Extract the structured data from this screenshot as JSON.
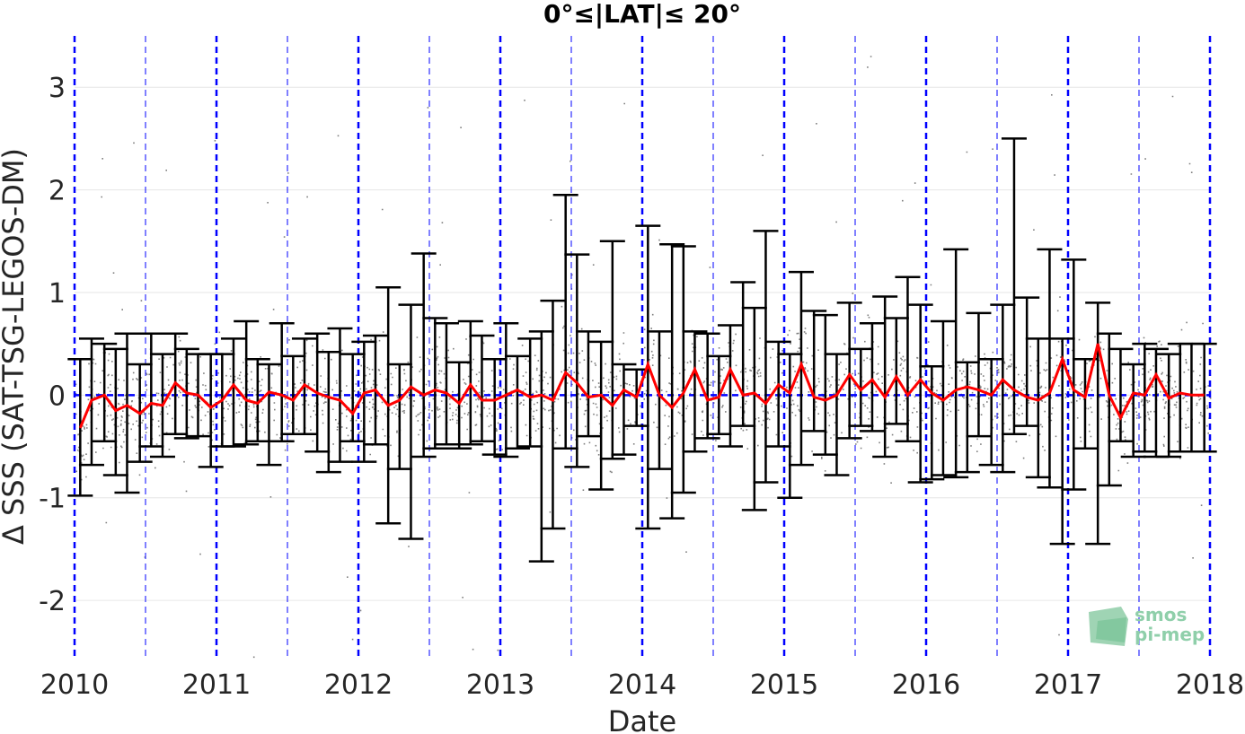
{
  "chart_data": {
    "type": "scatter",
    "title": "0°≤|LAT|≤ 20°",
    "xlabel": "Date",
    "ylabel": "Δ SSS (SAT-TSG-LEGOS-DM)",
    "xlim": [
      2010,
      2018
    ],
    "ylim": [
      -2.55,
      3.5
    ],
    "xticks": [
      "2010",
      "2011",
      "2012",
      "2013",
      "2014",
      "2015",
      "2016",
      "2017",
      "2018"
    ],
    "yticks": [
      "-2",
      "-1",
      "0",
      "1",
      "2",
      "3"
    ],
    "ytick_values": [
      -2,
      -1,
      0,
      1,
      2,
      3
    ],
    "grid": true,
    "colors": {
      "scatter": "#7f7f7f",
      "errorbar": "#000000",
      "mean_line": "#ff0000",
      "reference_lines": "#0000ff"
    },
    "zero_reference": 0,
    "year_boundaries": [
      2010,
      2011,
      2012,
      2013,
      2014,
      2015,
      2016,
      2017,
      2018
    ],
    "mid_year_lines": [
      2010.5,
      2011.5,
      2012.5,
      2013.5,
      2014.5,
      2015.5,
      2016.5,
      2017.5
    ],
    "series": [
      {
        "type": "line",
        "x": [
          2010.04,
          2010.12,
          2010.21,
          2010.29,
          2010.37,
          2010.46,
          2010.54,
          2010.62,
          2010.71,
          2010.79,
          2010.87,
          2010.96,
          2011.04,
          2011.12,
          2011.21,
          2011.29,
          2011.37,
          2011.46,
          2011.54,
          2011.62,
          2011.71,
          2011.79,
          2011.87,
          2011.96,
          2012.04,
          2012.12,
          2012.21,
          2012.29,
          2012.37,
          2012.46,
          2012.54,
          2012.62,
          2012.71,
          2012.79,
          2012.87,
          2012.96,
          2013.04,
          2013.12,
          2013.21,
          2013.29,
          2013.37,
          2013.46,
          2013.54,
          2013.62,
          2013.71,
          2013.79,
          2013.87,
          2013.96,
          2014.04,
          2014.12,
          2014.21,
          2014.29,
          2014.37,
          2014.46,
          2014.54,
          2014.62,
          2014.71,
          2014.79,
          2014.87,
          2014.96,
          2015.04,
          2015.12,
          2015.21,
          2015.29,
          2015.37,
          2015.46,
          2015.54,
          2015.62,
          2015.71,
          2015.79,
          2015.87,
          2015.96,
          2016.04,
          2016.12,
          2016.21,
          2016.29,
          2016.37,
          2016.46,
          2016.54,
          2016.62,
          2016.71,
          2016.79,
          2016.87,
          2016.96,
          2017.04,
          2017.12,
          2017.21,
          2017.29,
          2017.37,
          2017.46,
          2017.54,
          2017.62,
          2017.71,
          2017.79,
          2017.87,
          2017.96
        ],
        "y": [
          -0.32,
          -0.05,
          0.0,
          -0.15,
          -0.1,
          -0.18,
          -0.08,
          -0.1,
          0.12,
          0.02,
          0.0,
          -0.12,
          -0.05,
          0.1,
          -0.05,
          -0.08,
          0.03,
          0.0,
          -0.05,
          0.1,
          0.02,
          -0.02,
          -0.05,
          -0.18,
          0.02,
          0.05,
          -0.1,
          -0.05,
          0.08,
          0.0,
          0.05,
          0.02,
          -0.08,
          0.1,
          -0.05,
          -0.05,
          0.0,
          0.05,
          -0.02,
          0.0,
          -0.05,
          0.22,
          0.12,
          -0.02,
          0.0,
          -0.1,
          0.05,
          -0.02,
          0.3,
          0.0,
          -0.12,
          0.02,
          0.25,
          -0.05,
          -0.02,
          0.25,
          0.0,
          0.02,
          -0.08,
          0.1,
          0.02,
          0.3,
          -0.02,
          -0.05,
          0.0,
          0.2,
          0.05,
          0.15,
          -0.02,
          0.18,
          0.0,
          0.15,
          0.02,
          -0.05,
          0.05,
          0.08,
          0.05,
          0.0,
          0.15,
          0.05,
          -0.02,
          -0.05,
          0.02,
          0.35,
          0.05,
          -0.02,
          0.5,
          0.0,
          -0.22,
          0.02,
          0.0,
          0.2,
          -0.03,
          0.02,
          0.0,
          0.0
        ]
      },
      {
        "type": "errorbar",
        "x": [
          2010.04,
          2010.12,
          2010.21,
          2010.29,
          2010.37,
          2010.46,
          2010.54,
          2010.62,
          2010.71,
          2010.79,
          2010.87,
          2010.96,
          2011.04,
          2011.12,
          2011.21,
          2011.29,
          2011.37,
          2011.46,
          2011.54,
          2011.62,
          2011.71,
          2011.79,
          2011.87,
          2011.96,
          2012.04,
          2012.12,
          2012.21,
          2012.29,
          2012.37,
          2012.46,
          2012.54,
          2012.62,
          2012.71,
          2012.79,
          2012.87,
          2012.96,
          2013.04,
          2013.12,
          2013.21,
          2013.29,
          2013.37,
          2013.46,
          2013.54,
          2013.62,
          2013.71,
          2013.79,
          2013.87,
          2013.96,
          2014.04,
          2014.12,
          2014.21,
          2014.29,
          2014.37,
          2014.46,
          2014.54,
          2014.62,
          2014.71,
          2014.79,
          2014.87,
          2014.96,
          2015.04,
          2015.12,
          2015.21,
          2015.29,
          2015.37,
          2015.46,
          2015.54,
          2015.62,
          2015.71,
          2015.79,
          2015.87,
          2015.96,
          2016.04,
          2016.12,
          2016.21,
          2016.29,
          2016.37,
          2016.46,
          2016.54,
          2016.62,
          2016.71,
          2016.79,
          2016.87,
          2016.96,
          2017.04,
          2017.12,
          2017.21,
          2017.29,
          2017.37,
          2017.46,
          2017.54,
          2017.62,
          2017.71,
          2017.79,
          2017.87,
          2017.96
        ],
        "upper": [
          0.35,
          0.55,
          0.5,
          0.45,
          0.6,
          0.3,
          0.6,
          0.4,
          0.6,
          0.45,
          0.4,
          0.4,
          0.4,
          0.55,
          0.72,
          0.35,
          0.3,
          0.7,
          0.38,
          0.55,
          0.6,
          0.42,
          0.65,
          0.4,
          0.52,
          0.58,
          1.05,
          0.3,
          0.88,
          1.38,
          0.75,
          0.7,
          0.32,
          0.72,
          0.58,
          0.35,
          0.7,
          0.38,
          0.55,
          0.62,
          0.92,
          1.95,
          1.37,
          0.62,
          0.52,
          1.5,
          0.3,
          0.25,
          1.65,
          0.62,
          1.47,
          1.45,
          0.62,
          0.6,
          0.38,
          0.68,
          1.1,
          0.85,
          1.6,
          0.52,
          0.4,
          1.2,
          0.82,
          0.78,
          0.4,
          0.9,
          0.45,
          0.7,
          0.96,
          0.75,
          1.15,
          0.88,
          0.28,
          0.72,
          1.42,
          0.32,
          0.8,
          0.35,
          0.88,
          2.5,
          0.95,
          0.55,
          1.42,
          0.55,
          1.32,
          0.35,
          0.9,
          0.6,
          0.45,
          0.3,
          0.5,
          0.45,
          0.4,
          0.5,
          0.5,
          0.5
        ],
        "lower": [
          -0.98,
          -0.68,
          -0.45,
          -0.78,
          -0.95,
          -0.65,
          -0.5,
          -0.6,
          -0.38,
          -0.42,
          -0.4,
          -0.7,
          -0.5,
          -0.5,
          -0.48,
          -0.45,
          -0.68,
          -0.45,
          -0.38,
          -0.38,
          -0.55,
          -0.75,
          -0.65,
          -0.45,
          -0.65,
          -0.48,
          -1.25,
          -0.72,
          -1.4,
          -0.6,
          -0.52,
          -0.48,
          -0.52,
          -0.48,
          -0.45,
          -0.58,
          -0.6,
          -0.52,
          -0.5,
          -1.62,
          -1.3,
          -0.52,
          -0.7,
          -0.4,
          -0.92,
          -0.62,
          -0.58,
          -0.3,
          -1.3,
          -0.72,
          -1.2,
          -0.95,
          -0.55,
          -0.42,
          -0.38,
          -0.5,
          -0.3,
          -1.12,
          -0.85,
          -0.5,
          -1.0,
          -0.68,
          -0.35,
          -0.58,
          -0.78,
          -0.42,
          -0.3,
          -0.35,
          -0.6,
          -0.28,
          -0.45,
          -0.85,
          -0.82,
          -0.78,
          -0.8,
          -0.75,
          -0.4,
          -0.68,
          -0.75,
          -0.38,
          -0.3,
          -0.8,
          -0.9,
          -1.45,
          -0.92,
          -0.52,
          -1.45,
          -0.88,
          -0.45,
          -0.6,
          -0.55,
          -0.6,
          -0.6,
          -0.55,
          -0.55,
          -0.55
        ]
      }
    ]
  },
  "logo": {
    "line1": "smos",
    "line2": "pi-mep"
  }
}
